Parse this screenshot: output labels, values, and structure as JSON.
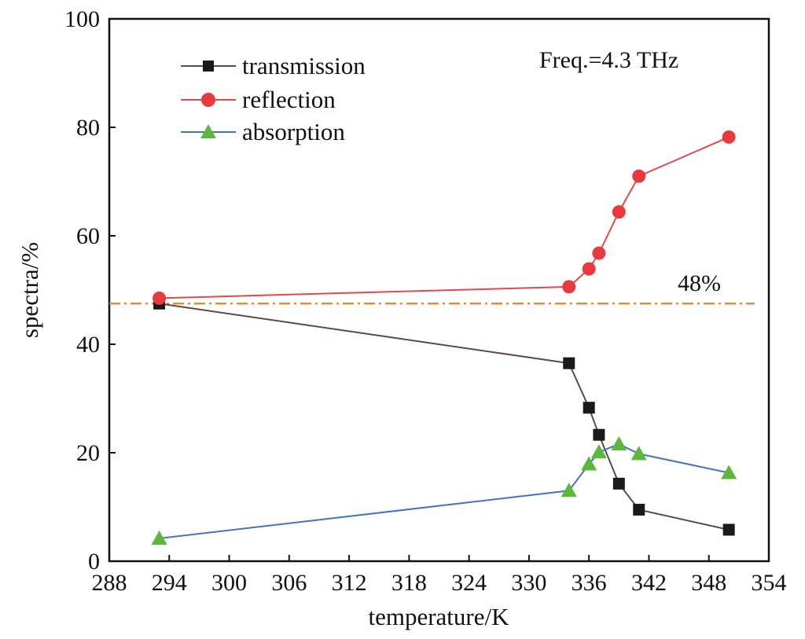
{
  "chart_data": {
    "type": "line",
    "xlabel": "temperature/K",
    "ylabel": "spectra/%",
    "xlim": [
      288,
      354
    ],
    "ylim": [
      0,
      100
    ],
    "xticks": [
      288,
      294,
      300,
      306,
      312,
      318,
      324,
      330,
      336,
      342,
      348,
      354
    ],
    "yticks": [
      0,
      20,
      40,
      60,
      80,
      100
    ],
    "grid": false,
    "legend_position": "top-left",
    "annotations": {
      "frequency": "Freq.=4.3 THz",
      "reference_label": "48%"
    },
    "reference_line": {
      "y": 47.5,
      "color": "#f07f1e",
      "style": "dash-dot"
    },
    "x": [
      293,
      334,
      336,
      337,
      339,
      341,
      350
    ],
    "series": [
      {
        "name": "transmission",
        "marker": "square",
        "line_color": "#5a4a4a",
        "marker_color": "#1a1a1a",
        "values": [
          47.5,
          36.5,
          28.3,
          23.3,
          14.3,
          9.5,
          5.8
        ]
      },
      {
        "name": "reflection",
        "marker": "circle",
        "line_color": "#e8474a",
        "marker_color": "#e83a3e",
        "values": [
          48.5,
          50.6,
          53.9,
          56.8,
          64.4,
          71.0,
          78.2
        ]
      },
      {
        "name": "absorption",
        "marker": "triangle",
        "line_color": "#4472c4",
        "marker_color": "#5cb83a",
        "values": [
          4.2,
          13.0,
          17.9,
          20.1,
          21.6,
          19.8,
          16.3
        ]
      }
    ]
  }
}
